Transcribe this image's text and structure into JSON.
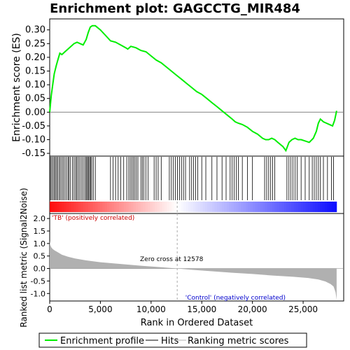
{
  "chart_data": {
    "type": "line",
    "title": "Enrichment plot: GAGCCTG_MIR484",
    "top_panel": {
      "ylabel": "Enrichment score (ES)",
      "ylim": [
        -0.16,
        0.34
      ],
      "yticks": [
        "0.30",
        "0.25",
        "0.20",
        "0.15",
        "0.10",
        "0.05",
        "0.00",
        "-0.05",
        "-0.10",
        "-0.15"
      ],
      "ytick_values": [
        0.3,
        0.25,
        0.2,
        0.15,
        0.1,
        0.05,
        0.0,
        -0.05,
        -0.1,
        -0.15
      ],
      "series": [
        {
          "name": "Enrichment profile",
          "color": "#00ee00",
          "x": [
            0,
            150,
            300,
            450,
            650,
            800,
            1000,
            1200,
            1500,
            1800,
            2100,
            2400,
            2700,
            3000,
            3300,
            3600,
            3800,
            4000,
            4200,
            4500,
            5000,
            5500,
            6000,
            6500,
            7000,
            7500,
            7700,
            8000,
            8500,
            9000,
            9500,
            10000,
            10500,
            11000,
            11500,
            12000,
            12500,
            13000,
            13500,
            14000,
            14500,
            15000,
            15500,
            16000,
            16500,
            17000,
            17500,
            18000,
            18300,
            18600,
            19000,
            19500,
            20000,
            20500,
            21000,
            21300,
            21600,
            21900,
            22200,
            22500,
            23000,
            23300,
            23600,
            23900,
            24200,
            24500,
            24800,
            25200,
            25600,
            26000,
            26300,
            26500,
            26700,
            27000,
            27300,
            27600,
            27900,
            28100,
            28300
          ],
          "y": [
            0.0,
            0.06,
            0.1,
            0.14,
            0.17,
            0.19,
            0.215,
            0.21,
            0.22,
            0.23,
            0.24,
            0.25,
            0.255,
            0.25,
            0.245,
            0.265,
            0.29,
            0.31,
            0.315,
            0.315,
            0.3,
            0.28,
            0.26,
            0.255,
            0.245,
            0.235,
            0.23,
            0.24,
            0.235,
            0.225,
            0.22,
            0.205,
            0.19,
            0.18,
            0.165,
            0.15,
            0.135,
            0.12,
            0.105,
            0.09,
            0.075,
            0.065,
            0.05,
            0.035,
            0.02,
            0.005,
            -0.01,
            -0.025,
            -0.035,
            -0.04,
            -0.045,
            -0.055,
            -0.07,
            -0.08,
            -0.095,
            -0.1,
            -0.1,
            -0.095,
            -0.1,
            -0.11,
            -0.125,
            -0.14,
            -0.11,
            -0.1,
            -0.095,
            -0.1,
            -0.1,
            -0.105,
            -0.11,
            -0.095,
            -0.07,
            -0.04,
            -0.025,
            -0.035,
            -0.04,
            -0.045,
            -0.05,
            -0.03,
            0.005
          ]
        }
      ]
    },
    "hits_panel": {
      "hit_positions": [
        80,
        200,
        330,
        460,
        560,
        680,
        800,
        950,
        1050,
        1200,
        1350,
        1500,
        1650,
        1800,
        1900,
        2050,
        2250,
        2400,
        2550,
        2650,
        2800,
        2950,
        3100,
        3250,
        3400,
        3550,
        3650,
        3750,
        3850,
        3950,
        4050,
        4150,
        4300,
        4500,
        6000,
        6250,
        6500,
        6750,
        7000,
        7300,
        7600,
        7800,
        7950,
        8100,
        8250,
        8400,
        8550,
        8700,
        9000,
        9150,
        9300,
        9500,
        9700,
        10300,
        10500,
        10700,
        11000,
        11800,
        12000,
        12200,
        12400,
        12600,
        12800,
        13000,
        13200,
        13400,
        13800,
        14000,
        14200,
        14400,
        14600,
        15000,
        15400,
        16000,
        16500,
        17000,
        17400,
        17800,
        18000,
        18200,
        18400,
        18600,
        19000,
        19500,
        20000,
        21200,
        21400,
        21600,
        21800,
        22000,
        22200,
        23400,
        23600,
        23800,
        24000,
        24200,
        24400,
        24800,
        25200,
        25600,
        25900,
        26100,
        26300,
        26500,
        26700,
        27000,
        27400,
        27800,
        28000
      ]
    },
    "metric_panel": {
      "ylabel": "Ranked list metric (Signal2Noise)",
      "ylim": [
        -1.3,
        2.2
      ],
      "yticks": [
        "2.0",
        "1.5",
        "1.0",
        "0.5",
        "0.0",
        "-0.5",
        "-1.0"
      ],
      "ytick_values": [
        2.0,
        1.5,
        1.0,
        0.5,
        0.0,
        -0.5,
        -1.0
      ],
      "x": [
        0,
        50,
        150,
        300,
        500,
        800,
        1200,
        1800,
        2500,
        3500,
        5000,
        7000,
        9000,
        11000,
        12578,
        14000,
        16000,
        18000,
        20000,
        22000,
        24000,
        25500,
        26500,
        27200,
        27700,
        28000,
        28200,
        28300
      ],
      "y": [
        1.1,
        0.95,
        0.85,
        0.78,
        0.72,
        0.65,
        0.55,
        0.47,
        0.4,
        0.33,
        0.25,
        0.18,
        0.11,
        0.05,
        0.0,
        -0.05,
        -0.11,
        -0.17,
        -0.22,
        -0.28,
        -0.33,
        -0.38,
        -0.44,
        -0.52,
        -0.62,
        -0.72,
        -0.95,
        -1.25
      ],
      "zero_cross_label": "Zero cross at 12578",
      "positive_label": "'TB' (positively correlated)",
      "negative_label": "'Control' (negatively correlated)"
    },
    "xlabel": "Rank in Ordered Dataset",
    "xlim": [
      0,
      29000
    ],
    "xticks": [
      "0",
      "5,000",
      "10,000",
      "15,000",
      "20,000",
      "25,000"
    ],
    "xtick_values": [
      0,
      5000,
      10000,
      15000,
      20000,
      25000
    ],
    "legend": [
      "Enrichment profile",
      "Hits",
      "Ranking metric scores"
    ],
    "legend_position": "bottom",
    "colors": {
      "profile": "#00ee00",
      "hits": "#000000",
      "metric": "#b0b0b0",
      "positive": "#ff0000",
      "negative": "#0000ff",
      "zero_line": "#808080",
      "positive_text": "#cc0000",
      "negative_text": "#0000cc"
    }
  }
}
